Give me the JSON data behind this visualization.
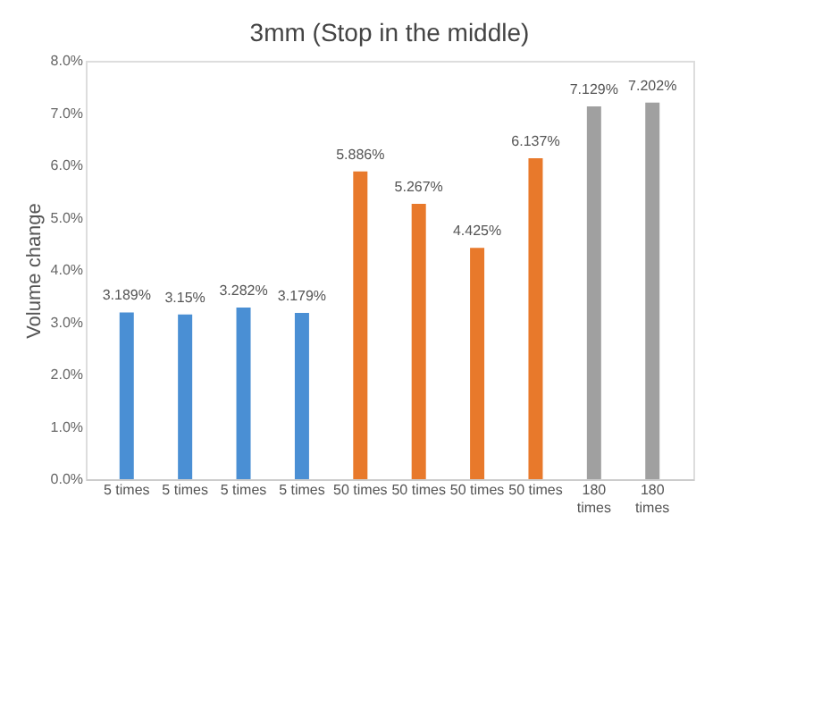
{
  "chart_data": {
    "type": "bar",
    "title": "3mm  (Stop in the middle)",
    "ylabel": "Volume change",
    "categories": [
      "5 times",
      "5 times",
      "5 times",
      "5 times",
      "50 times",
      "50 times",
      "50 times",
      "50 times",
      "180 times",
      "180 times"
    ],
    "values": [
      3.189,
      3.15,
      3.282,
      3.179,
      5.886,
      5.267,
      4.425,
      6.137,
      7.129,
      7.202
    ],
    "colors": [
      "#4a8fd4",
      "#4a8fd4",
      "#4a8fd4",
      "#4a8fd4",
      "#e8792b",
      "#e8792b",
      "#e8792b",
      "#e8792b",
      "#a0a0a0",
      "#a0a0a0"
    ],
    "value_labels": [
      "3.189%",
      "3.15%",
      "3.282%",
      "3.179%",
      "5.886%",
      "5.267%",
      "4.425%",
      "6.137%",
      "7.129%",
      "7.202%"
    ],
    "ylim": [
      0,
      8
    ],
    "yticks": [
      {
        "value": 0,
        "label": "0.0%"
      },
      {
        "value": 1,
        "label": "1.0%"
      },
      {
        "value": 2,
        "label": "2.0%"
      },
      {
        "value": 3,
        "label": "3.0%"
      },
      {
        "value": 4,
        "label": "4.0%"
      },
      {
        "value": 5,
        "label": "5.0%"
      },
      {
        "value": 6,
        "label": "6.0%"
      },
      {
        "value": 7,
        "label": "7.0%"
      },
      {
        "value": 8,
        "label": "8.0%"
      }
    ],
    "grid": false
  }
}
